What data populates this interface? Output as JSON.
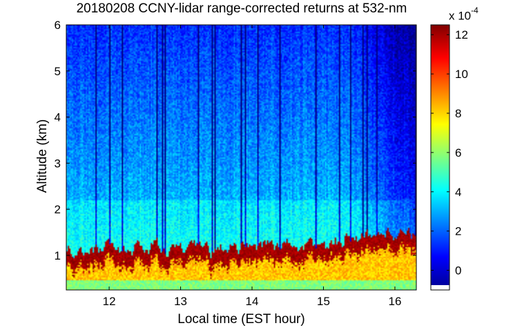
{
  "chart_data": {
    "type": "heatmap",
    "title": "20180208 CCNY-lidar range-corrected returns at 532-nm",
    "xlabel": "Local time (EST hour)",
    "ylabel": "Altitude (km)",
    "xlim": [
      11.4,
      16.3
    ],
    "ylim": [
      0.25,
      6
    ],
    "xticks": [
      12,
      13,
      14,
      15,
      16
    ],
    "yticks": [
      1,
      2,
      3,
      4,
      5,
      6
    ],
    "colorbar": {
      "colormap": "jet",
      "clim": [
        -1,
        12.5
      ],
      "ticks": [
        0,
        2,
        4,
        6,
        8,
        10,
        12
      ],
      "multiplier_base": "x 10",
      "multiplier_exponent": "-4"
    },
    "pbl_top_km": {
      "time": [
        11.4,
        11.8,
        12.2,
        12.6,
        13.0,
        13.4,
        13.8,
        14.2,
        14.6,
        15.0,
        15.3,
        15.7,
        16.0,
        16.3
      ],
      "value": [
        1.05,
        1.15,
        1.12,
        1.18,
        1.12,
        1.05,
        1.2,
        1.25,
        1.22,
        1.18,
        1.4,
        1.45,
        1.5,
        1.55
      ]
    },
    "fallback_colors": {
      "low": "#0000ff",
      "background": "#2bb8f2",
      "boundary_layer": "#ffd21a",
      "aerosol_top": "#800000"
    }
  }
}
